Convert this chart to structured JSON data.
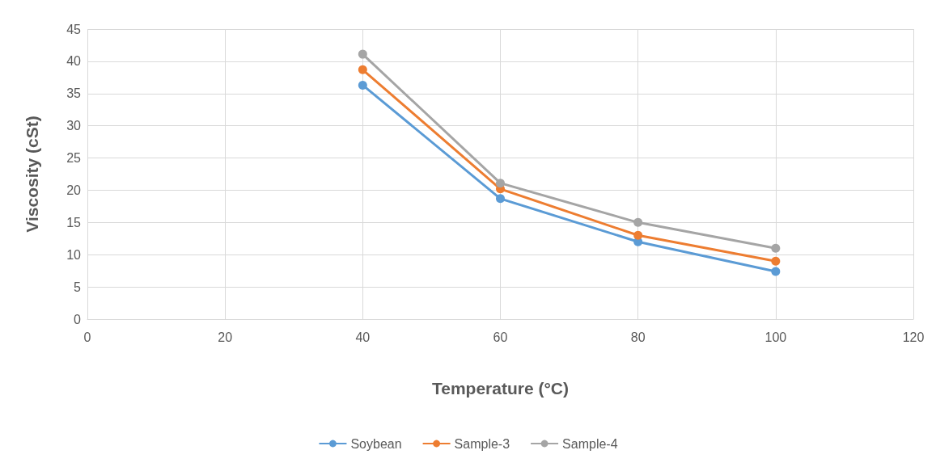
{
  "chart_data": {
    "type": "line",
    "xlabel": "Temperature (°C)",
    "ylabel": "Viscosity (cSt)",
    "x": [
      40,
      60,
      80,
      100
    ],
    "series": [
      {
        "name": "Soybean",
        "color": "#5b9bd5",
        "values": [
          36.3,
          18.7,
          12,
          7.4
        ]
      },
      {
        "name": "Sample-3",
        "color": "#ed7d31",
        "values": [
          38.7,
          20.2,
          13,
          9
        ]
      },
      {
        "name": "Sample-4",
        "color": "#a5a5a5",
        "values": [
          41.1,
          21.1,
          15,
          11
        ]
      }
    ],
    "xlim": [
      0,
      120
    ],
    "xticks": [
      0,
      20,
      40,
      60,
      80,
      100,
      120
    ],
    "ylim": [
      0,
      45
    ],
    "yticks": [
      0,
      5,
      10,
      15,
      20,
      25,
      30,
      35,
      40,
      45
    ],
    "grid": true,
    "legend": "bottom",
    "marker": "circle",
    "line_style": "solid"
  }
}
